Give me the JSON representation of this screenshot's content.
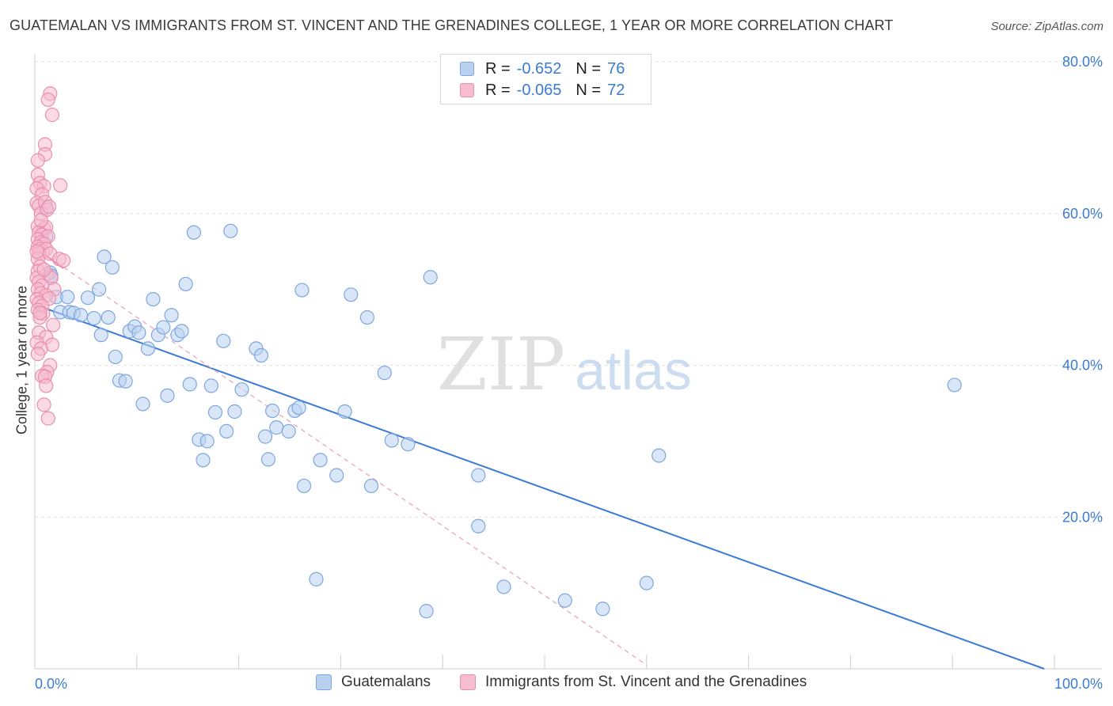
{
  "header": {
    "title": "GUATEMALAN VS IMMIGRANTS FROM ST. VINCENT AND THE GRENADINES COLLEGE, 1 YEAR OR MORE CORRELATION CHART",
    "source": "Source: ZipAtlas.com"
  },
  "colors": {
    "blue": "#3a7bd5",
    "blue_fill": "#b9d1f0",
    "pink": "#e8608a",
    "pink_fill": "#f6bcd0",
    "grid": "#e2e2e2"
  },
  "legend_top": {
    "rows": [
      {
        "r_label": "R =",
        "r_value": "-0.652",
        "n_label": "N =",
        "n_value": "76"
      },
      {
        "r_label": "R =",
        "r_value": "-0.065",
        "n_label": "N =",
        "n_value": "72"
      }
    ]
  },
  "legend_bottom": {
    "items": [
      "Guatemalans",
      "Immigrants from St. Vincent and the Grenadines"
    ]
  },
  "watermark": {
    "zip": "ZIP",
    "atlas": "atlas"
  },
  "chart_data": {
    "type": "scatter",
    "ylabel": "College, 1 year or more",
    "xlim": [
      0,
      100
    ],
    "ylim": [
      0,
      80
    ],
    "x_tick_labels": [
      "0.0%",
      "100.0%"
    ],
    "y_ticks": [
      20,
      40,
      60,
      80
    ],
    "y_tick_labels": [
      "20.0%",
      "40.0%",
      "60.0%",
      "80.0%"
    ],
    "grid": true,
    "series": [
      {
        "name": "Guatemalans",
        "color": "#3a7bd5",
        "r": -0.652,
        "n": 76,
        "trend": {
          "x": [
            0,
            99
          ],
          "y": [
            48.0,
            0.0
          ]
        },
        "points": [
          [
            1.1,
            60.8
          ],
          [
            1.1,
            57.0
          ],
          [
            1.5,
            52.2
          ],
          [
            1.6,
            51.8
          ],
          [
            2.1,
            49.0
          ],
          [
            2.5,
            47.0
          ],
          [
            3.2,
            49.0
          ],
          [
            3.4,
            47.0
          ],
          [
            3.8,
            46.9
          ],
          [
            4.5,
            46.6
          ],
          [
            5.2,
            48.9
          ],
          [
            5.8,
            46.2
          ],
          [
            6.3,
            50.0
          ],
          [
            6.8,
            54.3
          ],
          [
            6.5,
            44.0
          ],
          [
            7.2,
            46.3
          ],
          [
            7.6,
            52.9
          ],
          [
            7.9,
            41.1
          ],
          [
            8.3,
            38.0
          ],
          [
            8.9,
            37.9
          ],
          [
            9.3,
            44.5
          ],
          [
            9.8,
            45.1
          ],
          [
            10.2,
            44.3
          ],
          [
            10.6,
            34.9
          ],
          [
            11.1,
            42.2
          ],
          [
            11.6,
            48.7
          ],
          [
            12.1,
            44.0
          ],
          [
            12.6,
            45.0
          ],
          [
            13.0,
            36.0
          ],
          [
            13.4,
            46.6
          ],
          [
            14.0,
            44.0
          ],
          [
            14.4,
            44.5
          ],
          [
            14.8,
            50.7
          ],
          [
            15.2,
            37.5
          ],
          [
            15.6,
            57.5
          ],
          [
            16.1,
            30.2
          ],
          [
            16.5,
            27.5
          ],
          [
            16.9,
            30.0
          ],
          [
            17.3,
            37.3
          ],
          [
            17.7,
            33.8
          ],
          [
            18.5,
            43.2
          ],
          [
            18.8,
            31.3
          ],
          [
            19.2,
            57.7
          ],
          [
            19.6,
            33.9
          ],
          [
            20.3,
            36.8
          ],
          [
            21.7,
            42.2
          ],
          [
            22.2,
            41.3
          ],
          [
            22.6,
            30.6
          ],
          [
            22.9,
            27.6
          ],
          [
            23.3,
            34.0
          ],
          [
            23.7,
            31.8
          ],
          [
            24.9,
            31.3
          ],
          [
            25.5,
            34.0
          ],
          [
            25.9,
            34.4
          ],
          [
            26.2,
            49.9
          ],
          [
            26.4,
            24.1
          ],
          [
            27.6,
            11.8
          ],
          [
            28.0,
            27.5
          ],
          [
            29.6,
            25.5
          ],
          [
            30.4,
            33.9
          ],
          [
            31.0,
            49.3
          ],
          [
            32.6,
            46.3
          ],
          [
            33.0,
            24.1
          ],
          [
            34.3,
            39.0
          ],
          [
            35.0,
            30.1
          ],
          [
            36.6,
            29.6
          ],
          [
            38.4,
            7.6
          ],
          [
            38.8,
            51.6
          ],
          [
            43.5,
            25.5
          ],
          [
            43.5,
            18.8
          ],
          [
            46.0,
            10.8
          ],
          [
            52.0,
            9.0
          ],
          [
            55.7,
            7.9
          ],
          [
            60.0,
            11.3
          ],
          [
            61.2,
            28.1
          ],
          [
            90.2,
            37.4
          ]
        ]
      },
      {
        "name": "Immigrants from St. Vincent and the Grenadines",
        "color": "#e8608a",
        "r": -0.065,
        "n": 72,
        "trend": {
          "x": [
            0,
            2.8
          ],
          "y": [
            55.5,
            52.8
          ]
        },
        "trend_dashed": {
          "x": [
            0,
            60
          ],
          "y": [
            55.5,
            0.5
          ]
        },
        "points": [
          [
            1.5,
            75.8
          ],
          [
            1.3,
            75.0
          ],
          [
            1.7,
            73.0
          ],
          [
            1.0,
            69.1
          ],
          [
            1.0,
            67.8
          ],
          [
            0.3,
            67.0
          ],
          [
            0.3,
            65.1
          ],
          [
            0.5,
            64.0
          ],
          [
            0.9,
            63.6
          ],
          [
            2.5,
            63.7
          ],
          [
            0.2,
            63.3
          ],
          [
            0.7,
            62.5
          ],
          [
            0.2,
            61.4
          ],
          [
            0.4,
            61.0
          ],
          [
            1.0,
            61.5
          ],
          [
            0.6,
            60.0
          ],
          [
            1.2,
            60.5
          ],
          [
            0.3,
            58.3
          ],
          [
            0.9,
            58.0
          ],
          [
            1.1,
            58.2
          ],
          [
            0.4,
            57.5
          ],
          [
            0.7,
            57.2
          ],
          [
            1.3,
            57.0
          ],
          [
            0.3,
            56.6
          ],
          [
            0.6,
            56.2
          ],
          [
            0.9,
            56.0
          ],
          [
            0.3,
            55.6
          ],
          [
            0.5,
            55.3
          ],
          [
            0.8,
            55.0
          ],
          [
            1.1,
            55.3
          ],
          [
            0.4,
            54.8
          ],
          [
            1.5,
            54.7
          ],
          [
            0.3,
            54.0
          ],
          [
            2.4,
            54.0
          ],
          [
            2.8,
            53.8
          ],
          [
            0.5,
            53.0
          ],
          [
            1.2,
            52.0
          ],
          [
            0.3,
            52.4
          ],
          [
            0.2,
            51.5
          ],
          [
            0.4,
            51.0
          ],
          [
            1.6,
            51.5
          ],
          [
            0.7,
            50.5
          ],
          [
            0.3,
            50.0
          ],
          [
            1.9,
            50.0
          ],
          [
            0.6,
            49.5
          ],
          [
            1.1,
            49.2
          ],
          [
            0.2,
            48.7
          ],
          [
            1.4,
            48.8
          ],
          [
            0.4,
            48.2
          ],
          [
            0.7,
            47.8
          ],
          [
            0.3,
            47.3
          ],
          [
            0.8,
            46.8
          ],
          [
            0.5,
            46.3
          ],
          [
            1.8,
            45.3
          ],
          [
            0.4,
            44.3
          ],
          [
            1.1,
            43.7
          ],
          [
            0.2,
            43.0
          ],
          [
            1.7,
            42.7
          ],
          [
            0.6,
            42.2
          ],
          [
            0.3,
            41.5
          ],
          [
            1.5,
            40.0
          ],
          [
            1.2,
            39.1
          ],
          [
            0.7,
            38.6
          ],
          [
            1.0,
            38.5
          ],
          [
            1.1,
            37.3
          ],
          [
            0.9,
            34.8
          ],
          [
            1.3,
            33.0
          ],
          [
            0.5,
            46.9
          ],
          [
            0.2,
            55.0
          ],
          [
            0.9,
            52.6
          ],
          [
            0.6,
            59.1
          ],
          [
            1.4,
            60.9
          ]
        ]
      }
    ]
  }
}
